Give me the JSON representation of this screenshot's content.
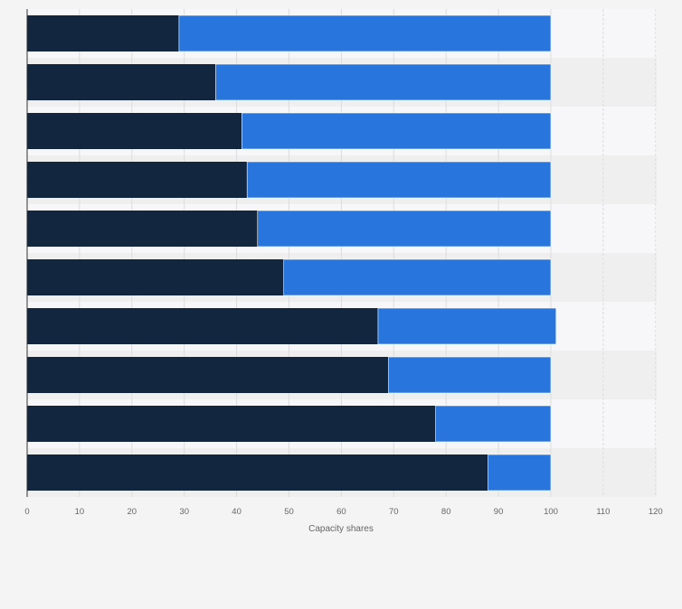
{
  "chart_data": {
    "type": "bar",
    "orientation": "horizontal",
    "stacked": true,
    "categories": [
      "",
      "",
      "",
      "",
      "",
      "",
      "",
      "",
      "",
      ""
    ],
    "series": [
      {
        "values": [
          29,
          36,
          41,
          42,
          44,
          49,
          67,
          69,
          78,
          88
        ]
      },
      {
        "values": [
          71,
          64,
          59,
          58,
          56,
          51,
          34,
          31,
          22,
          12
        ]
      }
    ],
    "xlabel": "Capacity shares",
    "ylabel": "",
    "xlim": [
      0,
      120
    ],
    "xticks": [
      "0",
      "10",
      "20",
      "30",
      "40",
      "50",
      "60",
      "70",
      "80",
      "90",
      "100",
      "110",
      "120"
    ],
    "grid": true,
    "legend": "none"
  },
  "colors": {
    "series_1": "#12263f",
    "series_2": "#2876dd",
    "grid": "#dcdcdc",
    "tick_text": "#666666",
    "background": "#f4f4f4",
    "band_light": "#f7f7f9",
    "band_dark": "#efefef"
  }
}
